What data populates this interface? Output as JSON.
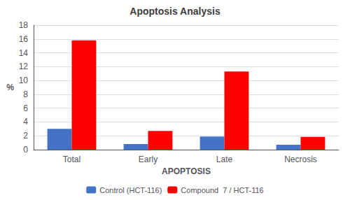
{
  "chart_data": {
    "type": "bar",
    "title": "Apoptosis Analysis",
    "xlabel": "APOPTOSIS",
    "ylabel": "%",
    "categories": [
      "Total",
      "Early",
      "Late",
      "Necrosis"
    ],
    "series": [
      {
        "name": "Control (HCT-116)",
        "color": "#4472C4",
        "values": [
          3.0,
          0.8,
          1.9,
          0.7
        ]
      },
      {
        "name": "Compound  7 / HCT-116",
        "color": "#FF0000",
        "values": [
          15.8,
          2.7,
          11.3,
          1.85
        ]
      }
    ],
    "ylim": [
      0,
      18
    ],
    "yticks": [
      0,
      2,
      4,
      6,
      8,
      10,
      12,
      14,
      16,
      18
    ],
    "grid": true,
    "legend": "bottom"
  }
}
